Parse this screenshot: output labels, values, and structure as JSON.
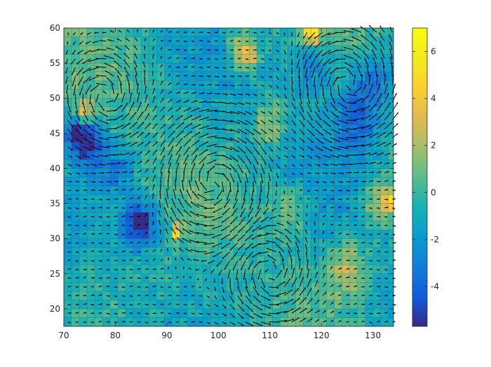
{
  "chart_data": {
    "type": "heatmap",
    "title": "",
    "xlabel": "",
    "ylabel": "",
    "xlim": [
      70,
      134
    ],
    "ylim": [
      17.5,
      60
    ],
    "xticks": [
      70,
      80,
      90,
      100,
      110,
      120,
      130
    ],
    "yticks": [
      20,
      25,
      30,
      35,
      40,
      45,
      50,
      55,
      60
    ],
    "grid": {
      "x_start": 70,
      "x_step": 1.5,
      "n_cols": 43,
      "y_start": 17.5,
      "y_step": 1.25,
      "n_rows": 34
    },
    "colorbar": {
      "range": [
        -5.7,
        7.0
      ],
      "ticks": [
        -4,
        -2,
        0,
        2,
        4,
        6
      ],
      "colormap": "parula"
    },
    "field_features": [
      {
        "name": "low",
        "x": 85,
        "y": 32,
        "value": -5.5,
        "radius": 3.2
      },
      {
        "name": "low",
        "x": 75,
        "y": 43.5,
        "value": -4.8,
        "radius": 3.0
      },
      {
        "name": "low",
        "x": 72,
        "y": 45,
        "value": -3.5,
        "radius": 2.5
      },
      {
        "name": "low",
        "x": 127,
        "y": 47,
        "value": -3.5,
        "radius": 5.0
      },
      {
        "name": "low",
        "x": 130,
        "y": 53,
        "value": -3.0,
        "radius": 4.0
      },
      {
        "name": "low",
        "x": 118,
        "y": 55,
        "value": -2.5,
        "radius": 5.0
      },
      {
        "name": "low",
        "x": 80,
        "y": 40,
        "value": -2.5,
        "radius": 3.0
      },
      {
        "name": "high",
        "x": 118,
        "y": 59.5,
        "value": 6.5,
        "radius": 2.0
      },
      {
        "name": "high",
        "x": 105.5,
        "y": 56,
        "value": 4.5,
        "radius": 2.2
      },
      {
        "name": "high",
        "x": 133.5,
        "y": 35.5,
        "value": 5.0,
        "radius": 1.5
      },
      {
        "name": "high",
        "x": 74,
        "y": 48,
        "value": 4.0,
        "radius": 1.5
      },
      {
        "name": "high",
        "x": 92,
        "y": 31,
        "value": 5.0,
        "radius": 1.0
      },
      {
        "name": "high",
        "x": 110,
        "y": 46.5,
        "value": 3.0,
        "radius": 3.0
      },
      {
        "name": "high",
        "x": 114,
        "y": 34,
        "value": 2.5,
        "radius": 3.5
      },
      {
        "name": "high",
        "x": 125,
        "y": 26,
        "value": 3.0,
        "radius": 4.0
      },
      {
        "name": "high",
        "x": 131,
        "y": 35,
        "value": 2.5,
        "radius": 3.0
      },
      {
        "name": "high",
        "x": 104,
        "y": 58,
        "value": 2.0,
        "radius": 3.0
      }
    ],
    "vectors": {
      "type": "quiver",
      "color": "#000000",
      "vortices": [
        {
          "x": 99,
          "y": 38,
          "strength": 1.0,
          "rotation": "cw"
        },
        {
          "x": 125,
          "y": 52,
          "strength": 0.9,
          "rotation": "ccw"
        },
        {
          "x": 78,
          "y": 50,
          "strength": 0.35,
          "rotation": "ccw"
        },
        {
          "x": 110,
          "y": 25,
          "strength": 0.35,
          "rotation": "ccw"
        }
      ]
    }
  }
}
